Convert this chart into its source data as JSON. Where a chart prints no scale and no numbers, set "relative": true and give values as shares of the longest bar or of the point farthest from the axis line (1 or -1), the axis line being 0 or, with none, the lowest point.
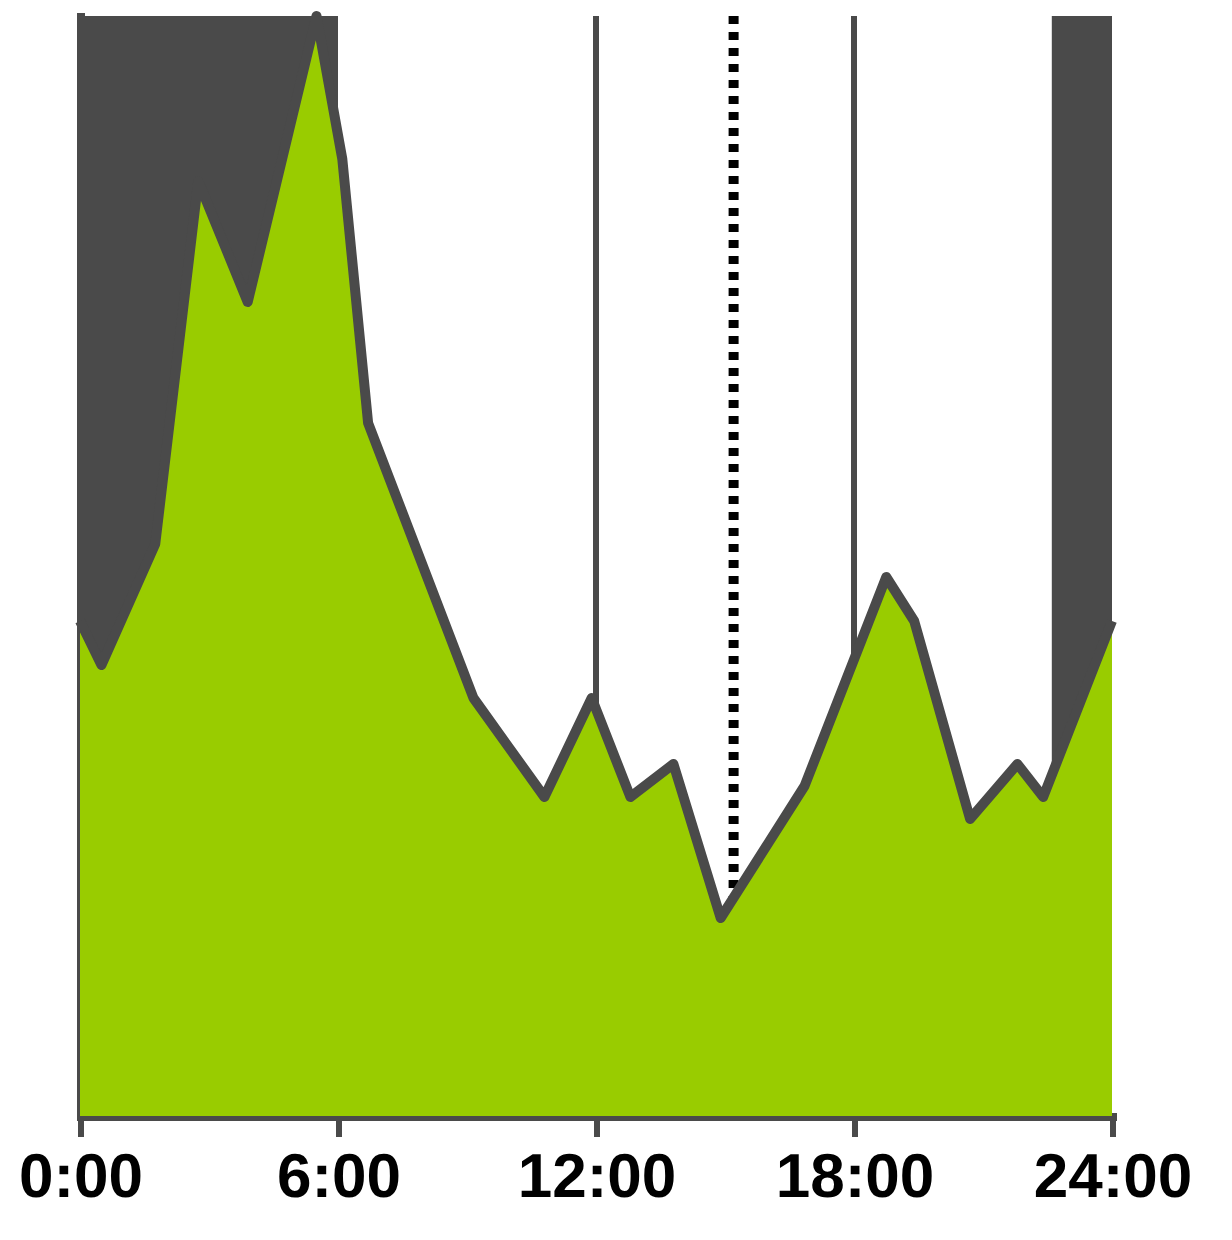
{
  "chart_data": {
    "type": "area",
    "relative": true,
    "x": [
      0,
      0.5,
      1.75,
      2.75,
      3.9,
      5.5,
      6.1,
      6.7,
      9.15,
      10.8,
      11.9,
      12.8,
      13.8,
      14.9,
      16.85,
      18.75,
      19.4,
      20.7,
      21.8,
      22.4,
      24
    ],
    "series": [
      {
        "color": "#99cc00",
        "values": [
          0.45,
          0.41,
          0.52,
          0.85,
          0.74,
          1,
          0.87,
          0.63,
          0.38,
          0.29,
          0.38,
          0.29,
          0.32,
          0.18,
          0.3,
          0.49,
          0.45,
          0.27,
          0.32,
          0.29,
          0.45
        ]
      }
    ],
    "xlim": [
      0,
      24
    ],
    "xticks": [
      {
        "value": 0,
        "label": "0:00"
      },
      {
        "value": 6,
        "label": "6:00"
      },
      {
        "value": 12,
        "label": "12:00"
      },
      {
        "value": 18,
        "label": "18:00"
      },
      {
        "value": 24,
        "label": "24:00"
      }
    ],
    "bands": [
      {
        "axis": "x",
        "from": 0,
        "to": 6,
        "color": "#4a4a4a"
      },
      {
        "axis": "x",
        "from": 22.6,
        "to": 24,
        "color": "#4a4a4a"
      }
    ],
    "ref_lines": [
      {
        "axis": "x",
        "value": 12,
        "color": "#4a4a4a",
        "line_style": "solid"
      },
      {
        "axis": "x",
        "value": 18,
        "color": "#4a4a4a",
        "line_style": "solid"
      },
      {
        "axis": "x",
        "value": 15.2,
        "color": "#000000",
        "line_style": "dotted"
      }
    ],
    "tick_labels": "x",
    "grid": false
  }
}
